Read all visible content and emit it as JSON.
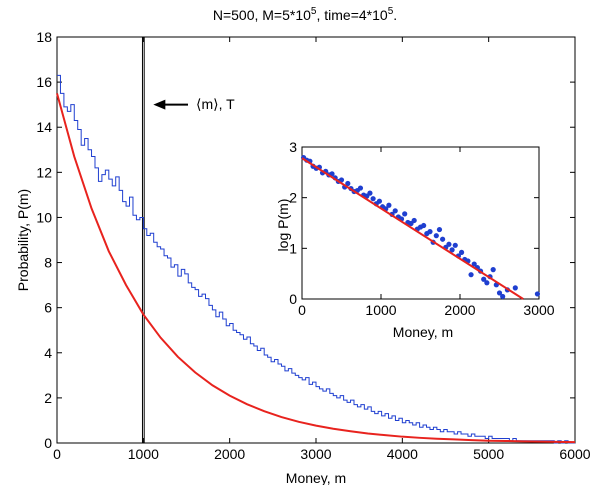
{
  "chart_data": [
    {
      "type": "line",
      "title_main": "N=500, M=5*10",
      "title_exp1": "5",
      "title_mid": ", time=4*10",
      "title_exp2": "5",
      "title_end": ".",
      "xlabel": "Money, m",
      "ylabel": "Probability, P(m)",
      "xlim": [
        0,
        6000
      ],
      "ylim": [
        0,
        18
      ],
      "x_ticks": [
        "0",
        "1000",
        "2000",
        "3000",
        "4000",
        "5000",
        "6000"
      ],
      "y_ticks": [
        "0",
        "2",
        "4",
        "6",
        "8",
        "10",
        "12",
        "14",
        "16",
        "18"
      ],
      "grid": false,
      "annotation": {
        "text": "⟨m⟩, T",
        "at_x": 1000,
        "at_y": 15
      },
      "vertical_lines": [
        990,
        1010
      ],
      "series": [
        {
          "kind": "histogram",
          "color": "#1f3fd0",
          "bin_width": 40,
          "values": [
            16.3,
            15.5,
            14.9,
            14.7,
            15.0,
            14.3,
            13.9,
            13.2,
            13.5,
            13.0,
            12.7,
            12.2,
            11.6,
            11.9,
            12.1,
            11.7,
            11.4,
            11.8,
            11.2,
            10.7,
            10.5,
            10.9,
            10.1,
            9.9,
            10.0,
            9.5,
            9.2,
            9.3,
            8.9,
            8.7,
            8.6,
            8.3,
            8.2,
            7.8,
            7.9,
            7.4,
            7.7,
            7.5,
            7.1,
            6.9,
            6.8,
            6.5,
            6.6,
            6.4,
            6.1,
            5.9,
            5.6,
            5.8,
            5.5,
            5.2,
            5.3,
            5.0,
            4.9,
            4.8,
            4.6,
            4.7,
            4.4,
            4.3,
            4.1,
            4.2,
            3.9,
            3.8,
            3.6,
            3.7,
            3.5,
            3.4,
            3.2,
            3.3,
            3.1,
            3.0,
            2.9,
            2.8,
            2.9,
            2.6,
            2.7,
            2.5,
            2.4,
            2.3,
            2.4,
            2.2,
            2.1,
            2.0,
            2.1,
            1.9,
            1.8,
            1.9,
            1.7,
            1.6,
            1.7,
            1.5,
            1.6,
            1.4,
            1.3,
            1.4,
            1.2,
            1.3,
            1.1,
            1.2,
            1.0,
            1.1,
            0.9,
            1.0,
            0.9,
            0.8,
            0.9,
            0.7,
            0.8,
            0.7,
            0.6,
            0.7,
            0.6,
            0.5,
            0.6,
            0.5,
            0.5,
            0.4,
            0.5,
            0.4,
            0.4,
            0.3,
            0.4,
            0.3,
            0.3,
            0.3,
            0.2,
            0.3,
            0.2,
            0.2,
            0.2,
            0.2,
            0.2,
            0.1,
            0.2,
            0.1,
            0.1,
            0.1,
            0.1,
            0.1,
            0.1,
            0.1,
            0.1,
            0.1,
            0.1,
            0.1,
            0.0,
            0.1,
            0.0,
            0.1,
            0.0,
            0.0
          ]
        },
        {
          "kind": "fit",
          "color": "#e8231e",
          "x": [
            0,
            200,
            400,
            600,
            800,
            1000,
            1200,
            1400,
            1600,
            1800,
            2000,
            2200,
            2400,
            2600,
            2800,
            3000,
            3200,
            3400,
            3600,
            3800,
            4000,
            4200,
            4400,
            4600,
            4800,
            5000,
            5200,
            5400,
            5600,
            5800,
            6000
          ],
          "y": [
            15.5,
            12.7,
            10.4,
            8.5,
            7.0,
            5.7,
            4.67,
            3.82,
            3.13,
            2.56,
            2.1,
            1.72,
            1.41,
            1.15,
            0.94,
            0.77,
            0.63,
            0.52,
            0.42,
            0.35,
            0.28,
            0.23,
            0.19,
            0.16,
            0.13,
            0.1,
            0.09,
            0.07,
            0.06,
            0.05,
            0.04
          ]
        }
      ]
    },
    {
      "type": "scatter",
      "title": "",
      "xlabel": "Money, m",
      "ylabel": "log P(m)",
      "xlim": [
        0,
        3000
      ],
      "ylim": [
        0,
        3
      ],
      "x_ticks": [
        "0",
        "1000",
        "2000",
        "3000"
      ],
      "y_ticks": [
        "0",
        "1",
        "2",
        "3"
      ],
      "series": [
        {
          "kind": "points",
          "color": "#1f3fd0",
          "x": [
            20,
            60,
            100,
            140,
            180,
            220,
            260,
            300,
            340,
            380,
            420,
            460,
            500,
            540,
            580,
            620,
            660,
            700,
            740,
            780,
            820,
            860,
            900,
            940,
            980,
            1020,
            1060,
            1100,
            1140,
            1180,
            1220,
            1260,
            1300,
            1340,
            1380,
            1420,
            1460,
            1500,
            1540,
            1580,
            1620,
            1660,
            1700,
            1740,
            1780,
            1820,
            1860,
            1900,
            1940,
            1980,
            2020,
            2060,
            2100,
            2140,
            2180,
            2220,
            2260,
            2300,
            2340,
            2380,
            2420,
            2460,
            2500,
            2540,
            2600,
            2700,
            2980
          ],
          "y": [
            2.79,
            2.74,
            2.72,
            2.62,
            2.58,
            2.6,
            2.49,
            2.52,
            2.45,
            2.47,
            2.39,
            2.32,
            2.35,
            2.21,
            2.28,
            2.18,
            2.12,
            2.14,
            2.19,
            2.05,
            2.03,
            2.09,
            1.98,
            1.88,
            1.93,
            1.82,
            1.78,
            1.85,
            1.67,
            1.74,
            1.62,
            1.58,
            1.68,
            1.51,
            1.49,
            1.55,
            1.38,
            1.42,
            1.45,
            1.29,
            1.33,
            1.12,
            1.25,
            1.37,
            1.18,
            1.02,
            1.08,
            0.97,
            1.06,
            0.85,
            0.92,
            0.78,
            0.75,
            0.48,
            0.69,
            0.62,
            0.55,
            0.39,
            0.32,
            0.44,
            0.58,
            0.28,
            0.12,
            0.05,
            0.18,
            0.22,
            0.1
          ]
        },
        {
          "kind": "fit",
          "color": "#e8231e",
          "x": [
            0,
            2800
          ],
          "y": [
            2.78,
            0.0
          ]
        }
      ]
    }
  ]
}
